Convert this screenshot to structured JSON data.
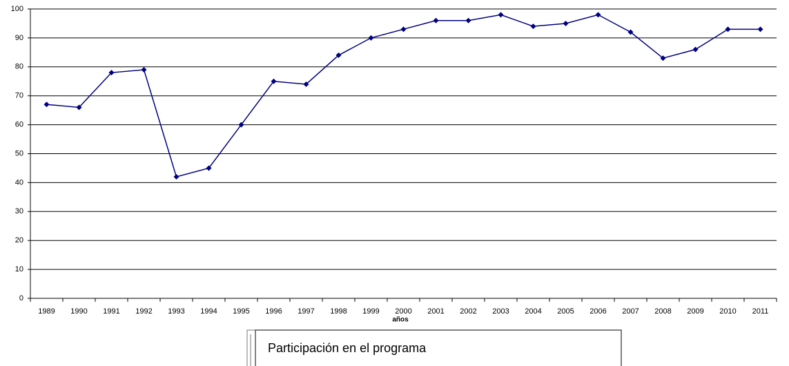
{
  "chart_data": {
    "type": "line",
    "categories": [
      "1989",
      "1990",
      "1991",
      "1992",
      "1993",
      "1994",
      "1995",
      "1996",
      "1997",
      "1998",
      "1999",
      "2000",
      "2001",
      "2002",
      "2003",
      "2004",
      "2005",
      "2006",
      "2007",
      "2008",
      "2009",
      "2010",
      "2011"
    ],
    "series": [
      {
        "name": "Participación en el programa",
        "color": "#000080",
        "values": [
          67,
          66,
          78,
          79,
          42,
          45,
          60,
          75,
          74,
          84,
          90,
          93,
          96,
          96,
          98,
          94,
          95,
          98,
          92,
          83,
          86,
          93,
          93
        ]
      }
    ],
    "x_label": "años",
    "ylim": [
      0,
      100
    ],
    "yticks": [
      0,
      10,
      20,
      30,
      40,
      50,
      60,
      70,
      80,
      90,
      100
    ],
    "grid": true
  }
}
